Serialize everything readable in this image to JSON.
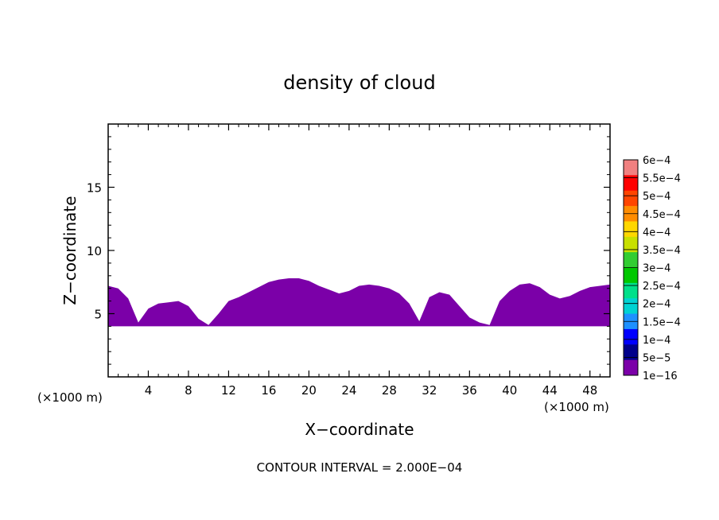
{
  "chart_data": {
    "type": "heatmap",
    "title": "density of cloud",
    "xlabel": "X−coordinate",
    "ylabel": "Z−coordinate",
    "x_unit_left": "(×1000 m)",
    "x_unit_right": "(×1000 m)",
    "footer": "CONTOUR INTERVAL = 2.000E−04",
    "xlim": [
      0,
      50
    ],
    "ylim": [
      0,
      20
    ],
    "x_ticks": [
      4,
      8,
      12,
      16,
      20,
      24,
      28,
      32,
      36,
      40,
      44,
      48
    ],
    "x_tick_labels": [
      "4",
      "8",
      "12",
      "16",
      "20",
      "24",
      "28",
      "32",
      "36",
      "40",
      "44",
      "48"
    ],
    "y_ticks": [
      5,
      10,
      15
    ],
    "y_tick_labels": [
      "5",
      "10",
      "15"
    ],
    "cloud_layer": {
      "base_z": 4.0,
      "top_z": [
        [
          0,
          7.2
        ],
        [
          1,
          7.0
        ],
        [
          2,
          6.2
        ],
        [
          3,
          4.3
        ],
        [
          4,
          5.4
        ],
        [
          5,
          5.8
        ],
        [
          6,
          5.9
        ],
        [
          7,
          6.0
        ],
        [
          8,
          5.6
        ],
        [
          9,
          4.6
        ],
        [
          10,
          4.1
        ],
        [
          11,
          5.0
        ],
        [
          12,
          6.0
        ],
        [
          13,
          6.3
        ],
        [
          14,
          6.7
        ],
        [
          15,
          7.1
        ],
        [
          16,
          7.5
        ],
        [
          17,
          7.7
        ],
        [
          18,
          7.8
        ],
        [
          19,
          7.8
        ],
        [
          20,
          7.6
        ],
        [
          21,
          7.2
        ],
        [
          22,
          6.9
        ],
        [
          23,
          6.6
        ],
        [
          24,
          6.8
        ],
        [
          25,
          7.2
        ],
        [
          26,
          7.3
        ],
        [
          27,
          7.2
        ],
        [
          28,
          7.0
        ],
        [
          29,
          6.6
        ],
        [
          30,
          5.8
        ],
        [
          31,
          4.4
        ],
        [
          32,
          6.3
        ],
        [
          33,
          6.7
        ],
        [
          34,
          6.5
        ],
        [
          35,
          5.6
        ],
        [
          36,
          4.7
        ],
        [
          37,
          4.3
        ],
        [
          38,
          4.1
        ],
        [
          39,
          6.0
        ],
        [
          40,
          6.8
        ],
        [
          41,
          7.3
        ],
        [
          42,
          7.4
        ],
        [
          43,
          7.1
        ],
        [
          44,
          6.5
        ],
        [
          45,
          6.2
        ],
        [
          46,
          6.4
        ],
        [
          47,
          6.8
        ],
        [
          48,
          7.1
        ],
        [
          49,
          7.2
        ],
        [
          50,
          7.3
        ]
      ],
      "level": "1e-16"
    },
    "colorbar": {
      "levels": [
        "6e−4",
        "5.5e−4",
        "5e−4",
        "4.5e−4",
        "4e−4",
        "3.5e−4",
        "3e−4",
        "2.5e−4",
        "2e−4",
        "1.5e−4",
        "1e−4",
        "5e−5",
        "1e−16"
      ],
      "colors": [
        "#f08080",
        "#ff0000",
        "#ff4500",
        "#ff8c00",
        "#ffd700",
        "#c8e000",
        "#32cd32",
        "#00c800",
        "#00e08a",
        "#00d2d2",
        "#1e90ff",
        "#0000ff",
        "#00008b",
        "#7b00a8"
      ]
    }
  }
}
